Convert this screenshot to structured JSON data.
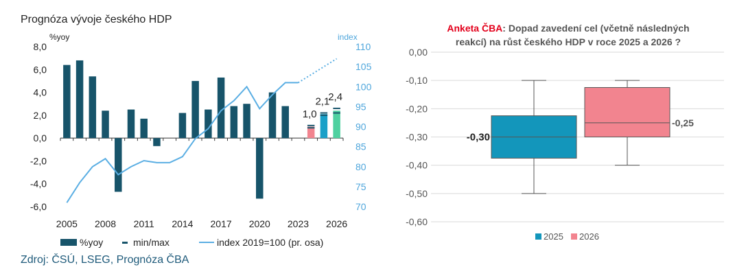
{
  "source": "Zdroj: ČSÚ, LSEG, Prognóza ČBA",
  "colors": {
    "bar": "#17546a",
    "index_line": "#5aaee3",
    "forecast_2024": "#f2848f",
    "forecast_2025": "#1aa0c8",
    "forecast_2026": "#4fd1a0",
    "box_2025": "#1396bb",
    "box_2026": "#f2848f",
    "brand_red": "#e3001b"
  },
  "chart_data": [
    {
      "type": "bar",
      "title": "Prognóza vývoje českého HDP",
      "ylabel": "%yoy",
      "y2label": "index",
      "ylim": [
        -6,
        8
      ],
      "y2lim": [
        70,
        110
      ],
      "yticks": [
        "8,0",
        "6,0",
        "4,0",
        "2,0",
        "0,0",
        "-2,0",
        "-4,0",
        "-6,0"
      ],
      "y2ticks": [
        "110",
        "105",
        "100",
        "95",
        "90",
        "85",
        "80",
        "75",
        "70"
      ],
      "xticks": [
        "2005",
        "2008",
        "2011",
        "2014",
        "2017",
        "2020",
        "2023",
        "2026"
      ],
      "years": [
        2005,
        2006,
        2007,
        2008,
        2009,
        2010,
        2011,
        2012,
        2013,
        2014,
        2015,
        2016,
        2017,
        2018,
        2019,
        2020,
        2021,
        2022,
        2023,
        2024,
        2025,
        2026
      ],
      "series": [
        {
          "name": "%yoy",
          "values": [
            6.4,
            6.8,
            5.4,
            2.4,
            -4.7,
            2.5,
            1.7,
            -0.7,
            0.0,
            2.2,
            5.0,
            2.5,
            5.3,
            2.8,
            3.0,
            -5.3,
            4.0,
            2.8,
            0.0,
            1.0,
            2.1,
            2.4
          ]
        },
        {
          "name": "min/max",
          "values": [
            null,
            null,
            null,
            null,
            null,
            null,
            null,
            null,
            null,
            null,
            null,
            null,
            null,
            null,
            null,
            null,
            null,
            null,
            null,
            [
              0.9,
              1.1
            ],
            [
              2.0,
              2.2
            ],
            [
              2.2,
              2.6
            ]
          ]
        },
        {
          "name": "index 2019=100 (pr. osa)",
          "values": [
            71,
            76,
            80,
            82,
            78,
            80,
            81.5,
            81,
            81,
            82.5,
            87,
            89.5,
            94,
            96.5,
            100,
            94.5,
            98,
            101,
            101,
            103,
            105,
            107
          ],
          "forecast_from": 2023
        }
      ],
      "data_labels": [
        {
          "year": 2024,
          "text": "1,0"
        },
        {
          "year": 2025,
          "text": "2,1"
        },
        {
          "year": 2026,
          "text": "2,4"
        }
      ],
      "legend": [
        {
          "label": "%yoy"
        },
        {
          "label": "min/max"
        },
        {
          "label": "index 2019=100 (pr. osa)"
        }
      ],
      "legend_position": "bottom"
    },
    {
      "type": "box",
      "title_prefix": "Anketa ČBA",
      "title_rest": ": Dopad zavedení cel (včetně následných",
      "title_line2": "reakcí) na růst českého HDP v roce 2025 a 2026 ?",
      "ylim": [
        -0.6,
        0.0
      ],
      "yticks": [
        "0,00",
        "-0,10",
        "-0,20",
        "-0,30",
        "-0,40",
        "-0,50",
        "-0,60"
      ],
      "boxes": [
        {
          "name": "2025",
          "min": -0.5,
          "q1": -0.375,
          "median": -0.3,
          "q3": -0.225,
          "max": -0.1,
          "label": "-0,30"
        },
        {
          "name": "2026",
          "min": -0.4,
          "q1": -0.3,
          "median": -0.25,
          "q3": -0.125,
          "max": -0.1,
          "label": "-0,25"
        }
      ],
      "legend": [
        {
          "label": "2025"
        },
        {
          "label": "2026"
        }
      ],
      "legend_position": "bottom"
    }
  ]
}
